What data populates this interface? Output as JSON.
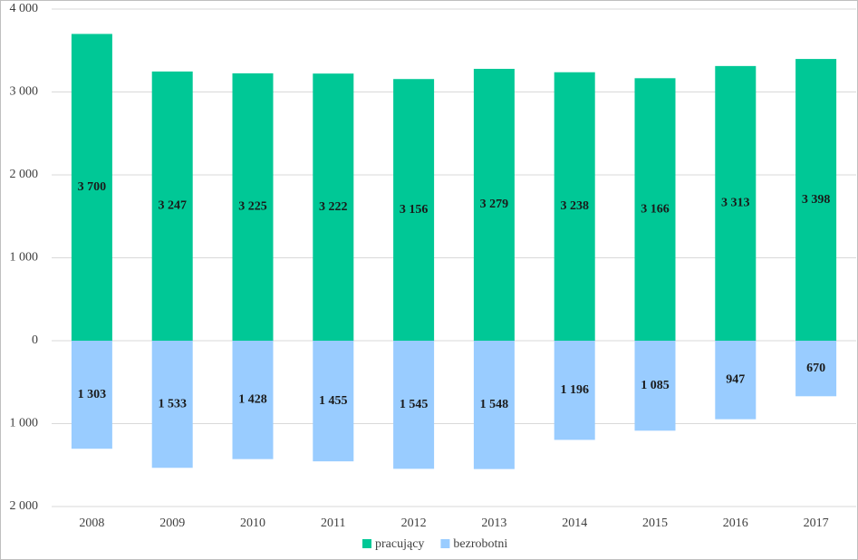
{
  "chart_data": {
    "type": "bar",
    "categories": [
      "2008",
      "2009",
      "2010",
      "2011",
      "2012",
      "2013",
      "2014",
      "2015",
      "2016",
      "2017"
    ],
    "series": [
      {
        "name": "pracujący",
        "color": "#00c896",
        "values": [
          3700,
          3247,
          3225,
          3222,
          3156,
          3279,
          3238,
          3166,
          3313,
          3398
        ],
        "value_labels": [
          "3 700",
          "3 247",
          "3 225",
          "3 222",
          "3 156",
          "3 279",
          "3 238",
          "3 166",
          "3 313",
          "3 398"
        ]
      },
      {
        "name": "bezrobotni",
        "color": "#99ccff",
        "values": [
          -1303,
          -1533,
          -1428,
          -1455,
          -1545,
          -1548,
          -1196,
          -1085,
          -947,
          -670
        ],
        "value_labels": [
          "1 303",
          "1 533",
          "1 428",
          "1 455",
          "1 545",
          "1 548",
          "1 196",
          "1 085",
          "947",
          "670"
        ]
      }
    ],
    "ylim": [
      -2000,
      4000
    ],
    "yticks": [
      {
        "value": -2000,
        "label": "2 000"
      },
      {
        "value": -1000,
        "label": "1 000"
      },
      0,
      {
        "value": 1000,
        "label": "1 000"
      },
      {
        "value": 2000,
        "label": "2 000"
      },
      {
        "value": 3000,
        "label": "3 000"
      },
      {
        "value": 4000,
        "label": "4 000"
      }
    ],
    "grid": true,
    "legend": "bottom"
  }
}
